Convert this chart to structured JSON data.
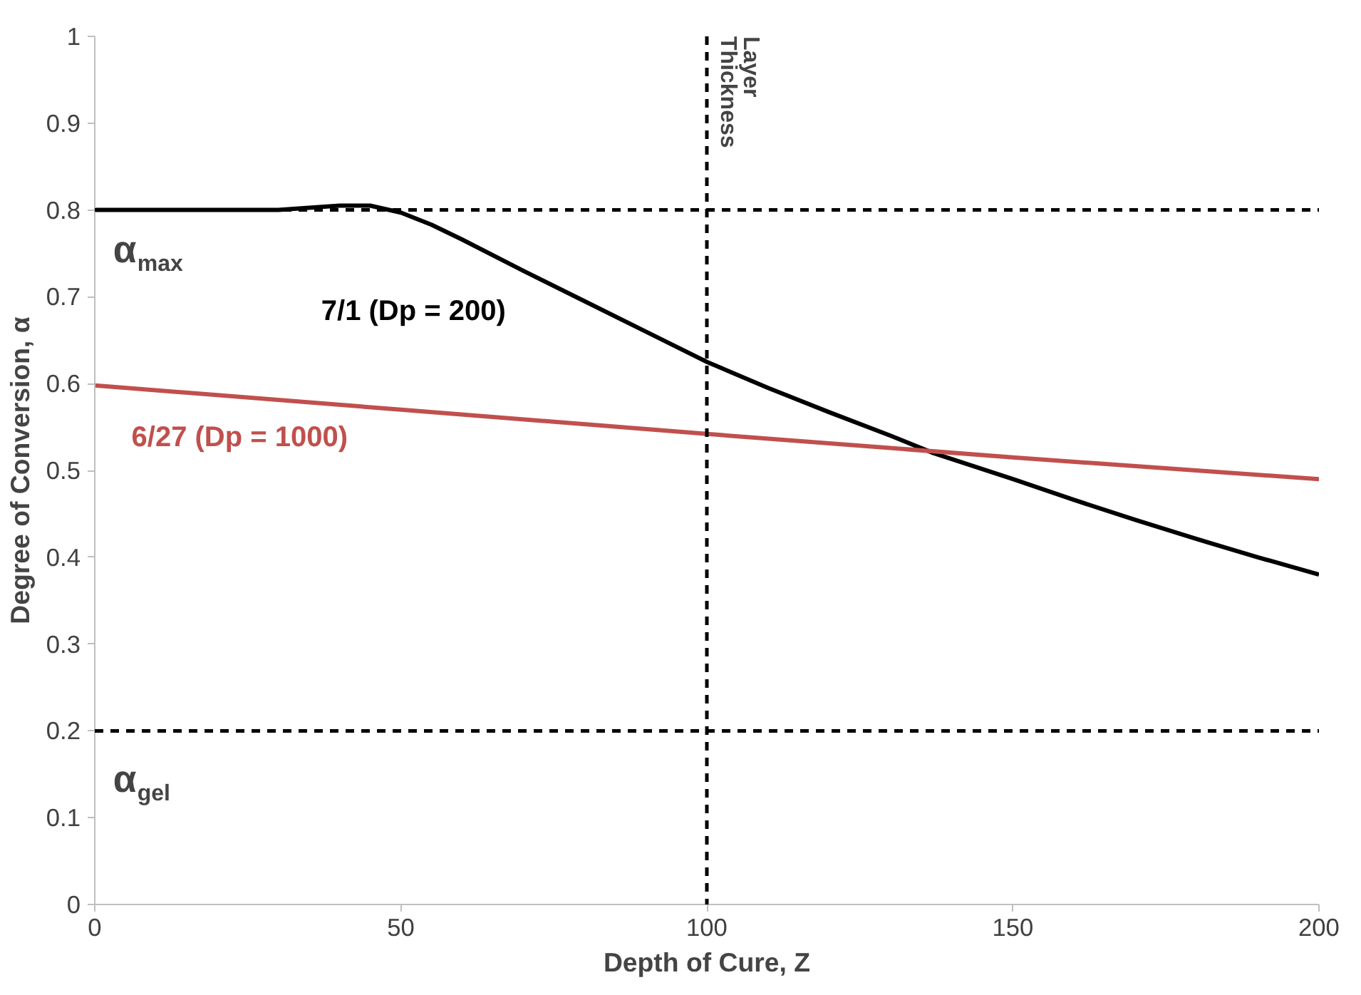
{
  "chart_data": {
    "type": "line",
    "xlabel": "Depth of Cure, Z",
    "ylabel": "Degree of Conversion, α",
    "xlim": [
      0,
      200
    ],
    "ylim": [
      0,
      1
    ],
    "xticks": [
      0,
      50,
      100,
      150,
      200
    ],
    "yticks": [
      0,
      0.1,
      0.2,
      0.3,
      0.4,
      0.5,
      0.6,
      0.7,
      0.8,
      0.9,
      1
    ],
    "grid": false,
    "legend": false,
    "marker": "none",
    "line_style": "solid",
    "series": [
      {
        "name": "7/1 (Dp = 200)",
        "color": "#000000",
        "x": [
          0,
          10,
          20,
          30,
          40,
          45,
          50,
          55,
          60,
          70,
          80,
          90,
          100,
          110,
          120,
          130,
          137,
          150,
          160,
          170,
          180,
          190,
          200
        ],
        "values": [
          0.8,
          0.8,
          0.8,
          0.8,
          0.805,
          0.805,
          0.797,
          0.783,
          0.766,
          0.73,
          0.695,
          0.66,
          0.625,
          0.595,
          0.567,
          0.54,
          0.52,
          0.49,
          0.466,
          0.443,
          0.421,
          0.4,
          0.38
        ]
      },
      {
        "name": "6/27 (Dp = 1000)",
        "color": "#c0504d",
        "x": [
          0,
          50,
          100,
          150,
          200
        ],
        "values": [
          0.598,
          0.57,
          0.542,
          0.515,
          0.49
        ]
      }
    ],
    "ref_lines": [
      {
        "axis": "y",
        "value": 0.8,
        "label": null,
        "color": "#000000",
        "line_style": "dashed"
      },
      {
        "axis": "y",
        "value": 0.2,
        "label": null,
        "color": "#000000",
        "line_style": "dashed"
      },
      {
        "axis": "x",
        "value": 100,
        "label": "Layer Thickness",
        "color": "#000000",
        "line_style": "dashed"
      }
    ],
    "annotations": [
      "α$_{max}$",
      "α$_{gel}$"
    ]
  }
}
